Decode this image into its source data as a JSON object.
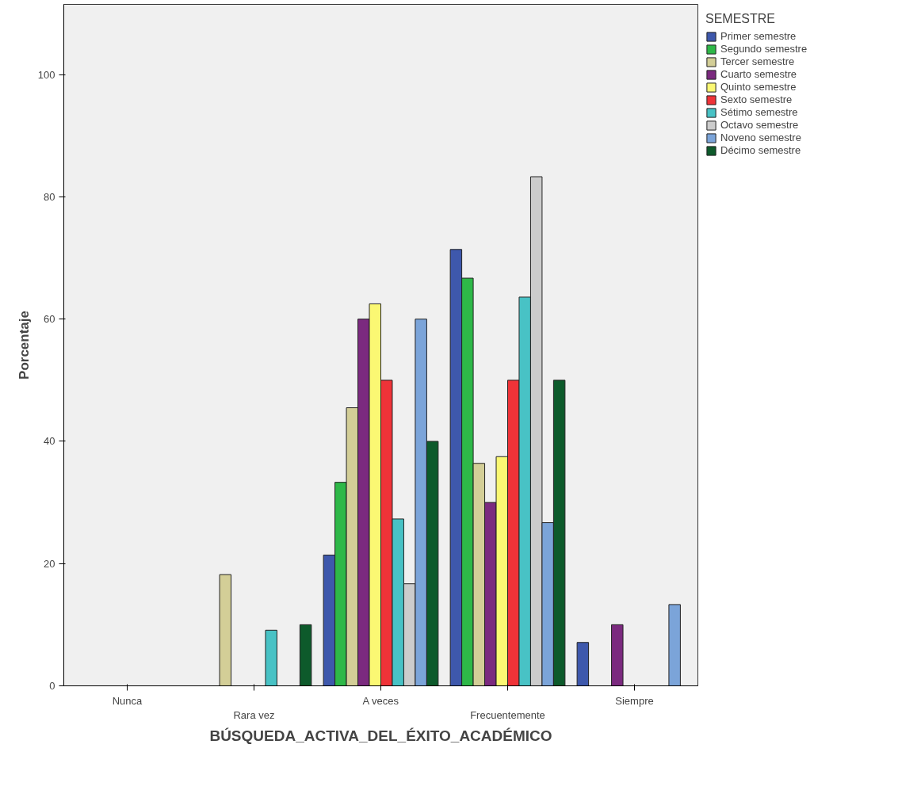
{
  "chart_data": {
    "type": "bar",
    "xlabel": "BÚSQUEDA_ACTIVA_DEL_ÉXITO_ACADÉMICO",
    "ylabel": "Porcentaje",
    "legend_title": "SEMESTRE",
    "categories": [
      "Nunca",
      "Rara vez",
      "A veces",
      "Frecuentemente",
      "Siempre"
    ],
    "series": [
      {
        "name": "Primer semestre",
        "color": "#3e58ac",
        "values": [
          null,
          null,
          21.4,
          71.4,
          7.1
        ]
      },
      {
        "name": "Segundo semestre",
        "color": "#2eb848",
        "values": [
          null,
          null,
          33.3,
          66.7,
          null
        ]
      },
      {
        "name": "Tercer semestre",
        "color": "#d3ce97",
        "values": [
          null,
          18.2,
          45.5,
          36.4,
          null
        ]
      },
      {
        "name": "Cuarto semestre",
        "color": "#7b2a7f",
        "values": [
          null,
          null,
          60,
          30,
          10
        ]
      },
      {
        "name": "Quinto semestre",
        "color": "#fbf873",
        "values": [
          null,
          null,
          62.5,
          37.5,
          null
        ]
      },
      {
        "name": "Sexto semestre",
        "color": "#ef3338",
        "values": [
          null,
          null,
          50,
          50,
          null
        ]
      },
      {
        "name": "Sétimo semestre",
        "color": "#48c2c5",
        "values": [
          null,
          9.1,
          27.3,
          63.6,
          null
        ]
      },
      {
        "name": "Octavo semestre",
        "color": "#cccccc",
        "values": [
          null,
          null,
          16.7,
          83.3,
          null
        ]
      },
      {
        "name": "Noveno semestre",
        "color": "#7ba4d9",
        "values": [
          null,
          null,
          60,
          26.7,
          13.3
        ]
      },
      {
        "name": "Décimo semestre",
        "color": "#0d5a2b",
        "values": [
          null,
          10,
          40,
          50,
          null
        ]
      }
    ],
    "ylim": [
      0,
      111.5
    ],
    "yticks": [
      0,
      20,
      40,
      60,
      80,
      100
    ],
    "grid": false,
    "legend": "right"
  }
}
